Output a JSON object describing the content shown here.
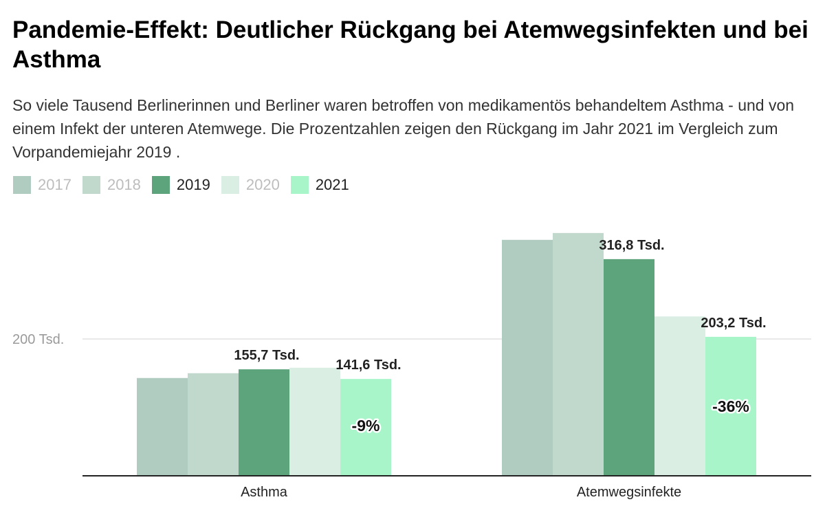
{
  "title": "Pandemie-Effekt: Deutlicher Rückgang bei Atemwegsinfekten und bei Asthma",
  "subtitle": "So viele Tausend Berlinerinnen und Berliner waren betroffen von medikamentös behandeltem Asthma - und von einem Infekt der unteren Atemwege. Die Prozentzahlen zeigen den Rückgang im Jahr 2021 im Vergleich zum Vorpandemiejahr 2019 .",
  "colors": {
    "2017": "#b0cbc0",
    "2018": "#c1d8cd",
    "2019": "#5da47d",
    "2020": "#daeee3",
    "2021": "#a9f5ca",
    "axis": "#222222",
    "grid": "#e2e2e2"
  },
  "legend": [
    {
      "label": "2017",
      "active": false
    },
    {
      "label": "2018",
      "active": false
    },
    {
      "label": "2019",
      "active": true
    },
    {
      "label": "2020",
      "active": false
    },
    {
      "label": "2021",
      "active": true
    }
  ],
  "chart_data": {
    "type": "bar",
    "categories": [
      "Asthma",
      "Atemwegsinfekte"
    ],
    "series": [
      {
        "name": "2017",
        "values": [
          143,
          345
        ]
      },
      {
        "name": "2018",
        "values": [
          150,
          355
        ]
      },
      {
        "name": "2019",
        "values": [
          155.7,
          316.8
        ]
      },
      {
        "name": "2020",
        "values": [
          158,
          233
        ]
      },
      {
        "name": "2021",
        "values": [
          141.6,
          203.2
        ]
      }
    ],
    "value_labels": [
      {
        "category": 0,
        "series": 2,
        "text": "155,7 Tsd."
      },
      {
        "category": 0,
        "series": 4,
        "text": "141,6 Tsd."
      },
      {
        "category": 1,
        "series": 2,
        "text": "316,8 Tsd."
      },
      {
        "category": 1,
        "series": 4,
        "text": "203,2 Tsd."
      }
    ],
    "percent_labels": [
      {
        "category": 0,
        "series": 4,
        "text": "-9%"
      },
      {
        "category": 1,
        "series": 4,
        "text": "-36%"
      }
    ],
    "yticks": [
      {
        "value": 200,
        "label": "200 Tsd."
      }
    ],
    "ylim": [
      0,
      380
    ],
    "grid": true,
    "legend_position": "top-left"
  }
}
